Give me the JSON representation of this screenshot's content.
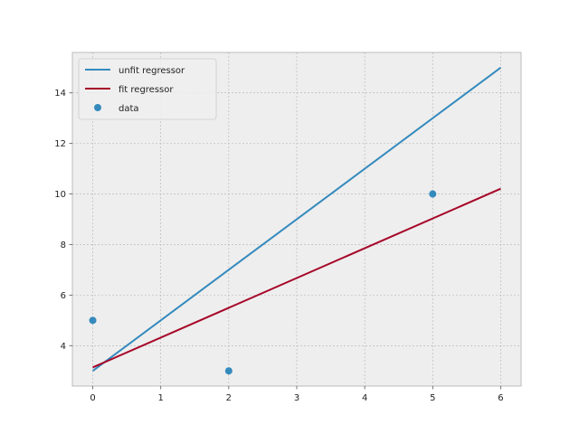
{
  "chart_data": {
    "type": "line",
    "title": "",
    "xlabel": "",
    "ylabel": "",
    "xlim": [
      -0.3,
      6.3
    ],
    "ylim": [
      2.4,
      15.6
    ],
    "xticks": [
      0,
      1,
      2,
      3,
      4,
      5,
      6
    ],
    "yticks": [
      4,
      6,
      8,
      10,
      12,
      14
    ],
    "grid": true,
    "legend_position": "top-left",
    "series": [
      {
        "name": "unfit regressor",
        "kind": "line",
        "color": "#348abd",
        "x": [
          0,
          6
        ],
        "y": [
          3,
          15
        ]
      },
      {
        "name": "fit regressor",
        "kind": "line",
        "color": "#a60628",
        "x": [
          0,
          6
        ],
        "y": [
          3.14,
          10.21
        ]
      },
      {
        "name": "data",
        "kind": "scatter",
        "color": "#348abd",
        "x": [
          0,
          2,
          5
        ],
        "y": [
          5,
          3,
          10
        ]
      }
    ]
  }
}
